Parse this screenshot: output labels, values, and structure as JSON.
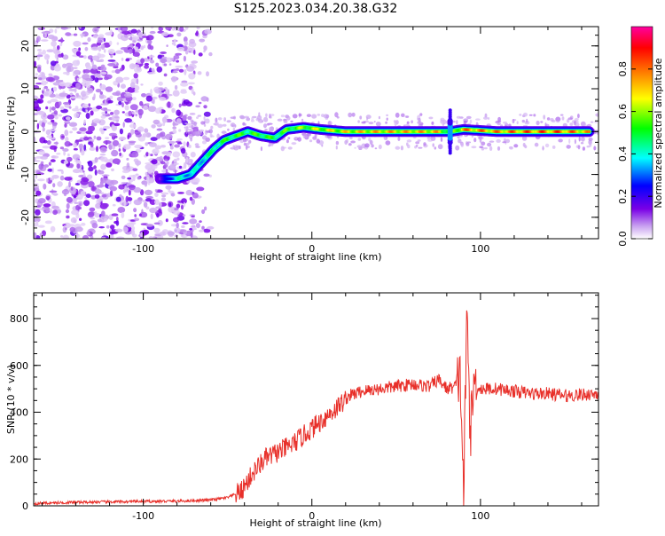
{
  "title": "S125.2023.034.20.38.G32",
  "colors": {
    "noise": "#7a00e6",
    "snr_line": "#e8302a"
  },
  "chart_data": [
    {
      "type": "heatmap",
      "xlabel": "Height of straight line (km)",
      "ylabel": "Frequency (Hz)",
      "xlim": [
        -165,
        170
      ],
      "ylim": [
        -25,
        24.5
      ],
      "xticks": [
        -100,
        0,
        100
      ],
      "xtick_labels": [
        "-100",
        "0",
        "100"
      ],
      "yticks": [
        -20,
        -10,
        0,
        10,
        20
      ],
      "ytick_labels": [
        "-20",
        "-10",
        "0",
        "10",
        "20"
      ],
      "colorbar": {
        "label": "Normalized spectral amplitude",
        "range": [
          0,
          1
        ],
        "ticks": [
          0.0,
          0.2,
          0.4,
          0.6,
          0.8
        ],
        "tick_labels": [
          "0.0",
          "0.2",
          "0.4",
          "0.6",
          "0.8"
        ],
        "colormap": [
          "#ffffff",
          "#c8a0f0",
          "#7a00e6",
          "#0000ff",
          "#00ffff",
          "#00ff00",
          "#ffff00",
          "#ff8000",
          "#ff0000",
          "#ff00a0"
        ]
      },
      "noise_region_x": [
        -165,
        -70
      ],
      "ridge": [
        {
          "x": -90,
          "y": -11,
          "amp": 0.15
        },
        {
          "x": -80,
          "y": -11,
          "amp": 0.45
        },
        {
          "x": -72,
          "y": -10,
          "amp": 0.4
        },
        {
          "x": -65,
          "y": -7,
          "amp": 0.45
        },
        {
          "x": -58,
          "y": -4,
          "amp": 0.5
        },
        {
          "x": -52,
          "y": -2,
          "amp": 0.55
        },
        {
          "x": -45,
          "y": -1,
          "amp": 0.6
        },
        {
          "x": -38,
          "y": 0,
          "amp": 0.55
        },
        {
          "x": -30,
          "y": -1,
          "amp": 0.6
        },
        {
          "x": -22,
          "y": -1.5,
          "amp": 0.55
        },
        {
          "x": -15,
          "y": 0.5,
          "amp": 0.6
        },
        {
          "x": -5,
          "y": 1,
          "amp": 0.65
        },
        {
          "x": 5,
          "y": 0.5,
          "amp": 0.7
        },
        {
          "x": 20,
          "y": 0,
          "amp": 0.75
        },
        {
          "x": 40,
          "y": 0,
          "amp": 0.8
        },
        {
          "x": 60,
          "y": 0,
          "amp": 0.8
        },
        {
          "x": 75,
          "y": 0,
          "amp": 0.8
        },
        {
          "x": 82,
          "y": 0,
          "amp": 0.55
        },
        {
          "x": 90,
          "y": 0.5,
          "amp": 0.85
        },
        {
          "x": 110,
          "y": 0,
          "amp": 0.85
        },
        {
          "x": 130,
          "y": 0,
          "amp": 0.9
        },
        {
          "x": 150,
          "y": 0,
          "amp": 0.9
        },
        {
          "x": 165,
          "y": 0,
          "amp": 0.8
        }
      ]
    },
    {
      "type": "line",
      "xlabel": "Height of straight line (km)",
      "ylabel": "SNR (10 * v/v)",
      "xlim": [
        -165,
        170
      ],
      "ylim": [
        0,
        910
      ],
      "xticks": [
        -100,
        0,
        100
      ],
      "xtick_labels": [
        "-100",
        "0",
        "100"
      ],
      "yticks": [
        0,
        200,
        400,
        600,
        800
      ],
      "ytick_labels": [
        "0",
        "200",
        "400",
        "600",
        "800"
      ],
      "series": [
        {
          "x": [
            -165,
            -140,
            -110,
            -80,
            -60,
            -50,
            -42,
            -35,
            -28,
            -20,
            -12,
            -5,
            5,
            15,
            22,
            30,
            40,
            50,
            60,
            70,
            75,
            80,
            85,
            88,
            90,
            92,
            94,
            96,
            100,
            110,
            120,
            130,
            140,
            150,
            160,
            170
          ],
          "y": [
            10,
            15,
            18,
            20,
            25,
            35,
            60,
            140,
            200,
            230,
            260,
            300,
            360,
            420,
            470,
            490,
            500,
            510,
            520,
            510,
            540,
            500,
            510,
            560,
            60,
            830,
            300,
            520,
            500,
            500,
            490,
            480,
            480,
            470,
            475,
            480
          ]
        }
      ]
    }
  ]
}
